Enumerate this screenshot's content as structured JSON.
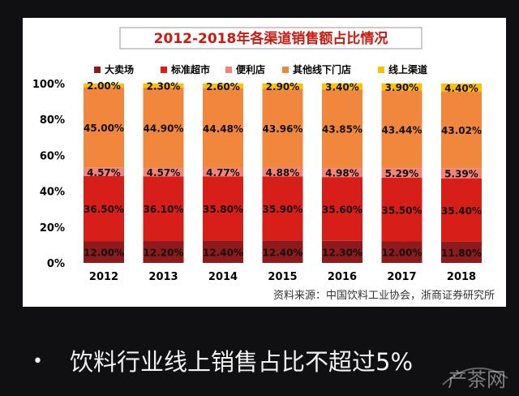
{
  "slide": {
    "bullet": "•",
    "text": "饮料行业线上销售占比不超过5%"
  },
  "watermark": {
    "text": "产茶网"
  },
  "colors": {
    "title_bg": "#ffffff",
    "title_text": "#cc1a10",
    "series": [
      "#8e1a1c",
      "#d81e18",
      "#f08478",
      "#f0873c",
      "#ffc000"
    ]
  },
  "chart_data": {
    "type": "bar",
    "stacked": true,
    "title": "2012-2018年各渠道销售额占比情况",
    "categories": [
      "2012",
      "2013",
      "2014",
      "2015",
      "2016",
      "2017",
      "2018"
    ],
    "ylim": [
      0,
      100
    ],
    "yticks": [
      "0%",
      "20%",
      "40%",
      "60%",
      "80%",
      "100%"
    ],
    "ytick_values": [
      0,
      20,
      40,
      60,
      80,
      100
    ],
    "legend_position": "top",
    "series": [
      {
        "name": "大卖场",
        "values": [
          12.0,
          12.2,
          12.4,
          12.4,
          12.3,
          12.0,
          11.8
        ],
        "labels": [
          "12.00%",
          "12.20%",
          "12.40%",
          "12.40%",
          "12.30%",
          "12.00%",
          "11.80%"
        ]
      },
      {
        "name": "标准超市",
        "values": [
          36.5,
          36.1,
          35.8,
          35.9,
          35.6,
          35.5,
          35.4
        ],
        "labels": [
          "36.50%",
          "36.10%",
          "35.80%",
          "35.90%",
          "35.60%",
          "35.50%",
          "35.40%"
        ]
      },
      {
        "name": "便利店",
        "values": [
          4.57,
          4.57,
          4.77,
          4.88,
          4.98,
          5.29,
          5.39
        ],
        "labels": [
          "4.57%",
          "4.57%",
          "4.77%",
          "4.88%",
          "4.98%",
          "5.29%",
          "5.39%"
        ]
      },
      {
        "name": "其他线下门店",
        "values": [
          45.0,
          44.9,
          44.48,
          43.96,
          43.85,
          43.44,
          43.02
        ],
        "labels": [
          "45.00%",
          "44.90%",
          "44.48%",
          "43.96%",
          "43.85%",
          "43.44%",
          "43.02%"
        ]
      },
      {
        "name": "线上渠道",
        "values": [
          2.0,
          2.3,
          2.6,
          2.9,
          3.4,
          3.9,
          4.4
        ],
        "labels": [
          "2.00%",
          "2.30%",
          "2.60%",
          "2.90%",
          "3.40%",
          "3.90%",
          "4.40%"
        ]
      }
    ],
    "source": "资料来源：中国饮料工业协会，浙商证券研究所"
  }
}
